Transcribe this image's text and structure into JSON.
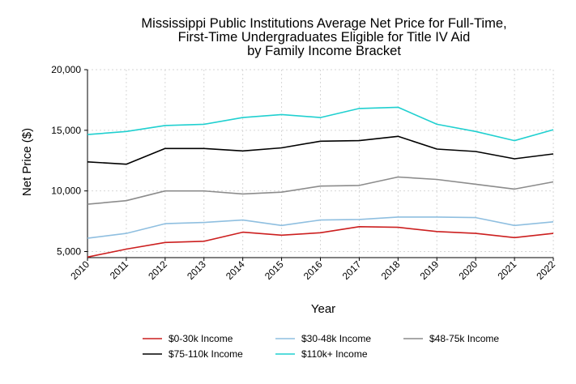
{
  "chart_data": {
    "type": "line",
    "title": [
      "Mississippi Public Institutions Average Net Price for Full-Time,",
      "First-Time Undergraduates Eligible for Title IV Aid",
      "by Family Income Bracket"
    ],
    "xlabel": "Year",
    "ylabel": "Net Price ($)",
    "x": [
      "2010",
      "2011",
      "2012",
      "2013",
      "2014",
      "2015",
      "2016",
      "2017",
      "2018",
      "2019",
      "2020",
      "2021",
      "2022"
    ],
    "ylim": [
      4500,
      20000
    ],
    "yticks": [
      5000,
      10000,
      15000,
      20000
    ],
    "ytick_labels": [
      "5,000",
      "10,000",
      "15,000",
      "20,000"
    ],
    "grid": true,
    "legend_position": "bottom",
    "series": [
      {
        "name": "$0-30k Income",
        "color": "#cc1f1f",
        "values": [
          4550,
          5200,
          5750,
          5850,
          6600,
          6350,
          6550,
          7050,
          7000,
          6650,
          6500,
          6150,
          6500
        ]
      },
      {
        "name": "$30-48k Income",
        "color": "#8fbfe0",
        "values": [
          6100,
          6500,
          7300,
          7400,
          7600,
          7150,
          7600,
          7650,
          7850,
          7850,
          7800,
          7150,
          7450
        ]
      },
      {
        "name": "$48-75k Income",
        "color": "#8c8c8c",
        "values": [
          8900,
          9200,
          10000,
          10000,
          9750,
          9900,
          10400,
          10450,
          11150,
          10950,
          10550,
          10150,
          10750
        ]
      },
      {
        "name": "$75-110k Income",
        "color": "#000000",
        "values": [
          12400,
          12200,
          13500,
          13500,
          13300,
          13550,
          14100,
          14150,
          14500,
          13450,
          13250,
          12650,
          13050
        ]
      },
      {
        "name": "$110k+ Income",
        "color": "#20d0d0",
        "values": [
          14650,
          14900,
          15400,
          15500,
          16050,
          16300,
          16050,
          16800,
          16900,
          15500,
          14900,
          14150,
          15050
        ]
      }
    ]
  }
}
